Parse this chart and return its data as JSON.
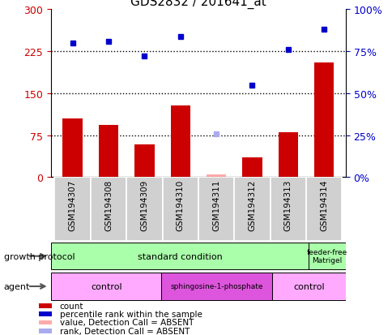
{
  "title": "GDS2832 / 201641_at",
  "samples": [
    "GSM194307",
    "GSM194308",
    "GSM194309",
    "GSM194310",
    "GSM194311",
    "GSM194312",
    "GSM194313",
    "GSM194314"
  ],
  "counts": [
    105,
    93,
    58,
    128,
    5,
    35,
    80,
    205
  ],
  "percentile_ranks": [
    80,
    81,
    72,
    84,
    26,
    55,
    76,
    88
  ],
  "absent_flags": [
    false,
    false,
    false,
    false,
    true,
    false,
    false,
    false
  ],
  "left_ylim": [
    0,
    300
  ],
  "right_ylim": [
    0,
    100
  ],
  "left_yticks": [
    0,
    75,
    150,
    225,
    300
  ],
  "right_yticks": [
    0,
    25,
    50,
    75,
    100
  ],
  "right_yticklabels": [
    "0%",
    "25%",
    "50%",
    "75%",
    "100%"
  ],
  "hlines": [
    75,
    150,
    225
  ],
  "bar_color_present": "#cc0000",
  "bar_color_absent": "#ffaaaa",
  "dot_color_present": "#0000cc",
  "dot_color_absent": "#aaaaee",
  "bar_width": 0.55,
  "growth_protocol_label": "growth protocol",
  "agent_label": "agent",
  "legend_items": [
    {
      "label": "count",
      "color": "#cc0000"
    },
    {
      "label": "percentile rank within the sample",
      "color": "#0000cc"
    },
    {
      "label": "value, Detection Call = ABSENT",
      "color": "#ffaaaa"
    },
    {
      "label": "rank, Detection Call = ABSENT",
      "color": "#aaaaee"
    }
  ],
  "tick_label_color_left": "#cc0000",
  "tick_label_color_right": "#0000cc",
  "title_color": "#000000",
  "gp_color": "#aaffaa",
  "agent_control_color": "#ffaaff",
  "agent_sphingo_color": "#dd55dd",
  "sample_box_color": "#d0d0d0"
}
